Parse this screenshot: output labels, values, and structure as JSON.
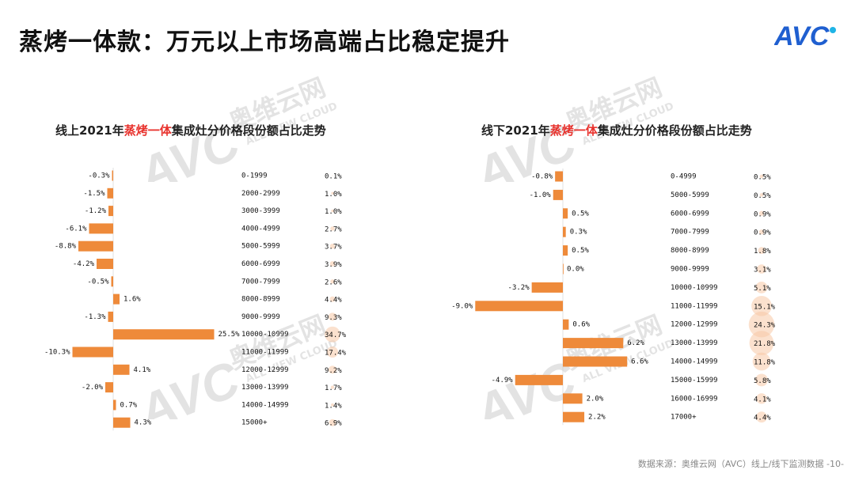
{
  "page": {
    "title": "蒸烤一体款：万元以上市场高端占比稳定提升",
    "source": "数据来源：奥维云网（AVC）线上/线下监测数据 -10-",
    "logo_text": "AVC",
    "watermark": {
      "brand": "AVC",
      "cn": "奥维云网",
      "en": "ALL VIEW CLOUD"
    }
  },
  "colors": {
    "bar": "#ee8a3a",
    "bubble": "#f7c9a6",
    "highlight": "#e8322d"
  },
  "chart_data": [
    {
      "type": "bar",
      "title": {
        "prefix": "线上2021年",
        "highlight": "蒸烤一体",
        "suffix": "集成灶分价格段份额占比走势"
      },
      "categories": [
        "0-1999",
        "2000-2999",
        "3000-3999",
        "4000-4999",
        "5000-5999",
        "6000-6999",
        "7000-7999",
        "8000-8999",
        "9000-9999",
        "10000-10999",
        "11000-11999",
        "12000-12999",
        "13000-13999",
        "14000-14999",
        "15000+"
      ],
      "change_pct": [
        -0.3,
        -1.5,
        -1.2,
        -6.1,
        -8.8,
        -4.2,
        -0.5,
        1.6,
        -1.3,
        25.5,
        -10.3,
        4.1,
        -2.0,
        0.7,
        4.3
      ],
      "change_labels": [
        "-0.3%",
        "-1.5%",
        "-1.2%",
        "-6.1%",
        "-8.8%",
        "-4.2%",
        "-0.5%",
        "1.6%",
        "-1.3%",
        "25.5%",
        "-10.3%",
        "4.1%",
        "-2.0%",
        "0.7%",
        "4.3%"
      ],
      "share_pct": [
        0.1,
        1.0,
        1.0,
        2.7,
        3.7,
        3.9,
        2.6,
        4.4,
        9.3,
        34.7,
        17.4,
        9.2,
        1.7,
        1.4,
        6.9
      ],
      "share_labels": [
        "0.1%",
        "1.0%",
        "1.0%",
        "2.7%",
        "3.7%",
        "3.9%",
        "2.6%",
        "4.4%",
        "9.3%",
        "34.7%",
        "17.4%",
        "9.2%",
        "1.7%",
        "1.4%",
        "6.9%"
      ]
    },
    {
      "type": "bar",
      "title": {
        "prefix": "线下2021年",
        "highlight": "蒸烤一体",
        "suffix": "集成灶分价格段份额占比走势"
      },
      "categories": [
        "0-4999",
        "5000-5999",
        "6000-6999",
        "7000-7999",
        "8000-8999",
        "9000-9999",
        "10000-10999",
        "11000-11999",
        "12000-12999",
        "13000-13999",
        "14000-14999",
        "15000-15999",
        "16000-16999",
        "17000+"
      ],
      "change_pct": [
        -0.8,
        -1.0,
        0.5,
        0.3,
        0.5,
        0.0,
        -3.2,
        -9.0,
        0.6,
        6.2,
        6.6,
        -4.9,
        2.0,
        2.2
      ],
      "change_labels": [
        "-0.8%",
        "-1.0%",
        "0.5%",
        "0.3%",
        "0.5%",
        "0.0%",
        "-3.2%",
        "-9.0%",
        "0.6%",
        "6.2%",
        "6.6%",
        "-4.9%",
        "2.0%",
        "2.2%"
      ],
      "share_pct": [
        0.5,
        0.5,
        0.9,
        0.9,
        1.8,
        3.1,
        5.1,
        15.1,
        24.3,
        21.8,
        11.8,
        5.8,
        4.1,
        4.4
      ],
      "share_labels": [
        "0.5%",
        "0.5%",
        "0.9%",
        "0.9%",
        "1.8%",
        "3.1%",
        "5.1%",
        "15.1%",
        "24.3%",
        "21.8%",
        "11.8%",
        "5.8%",
        "4.1%",
        "4.4%"
      ]
    }
  ]
}
